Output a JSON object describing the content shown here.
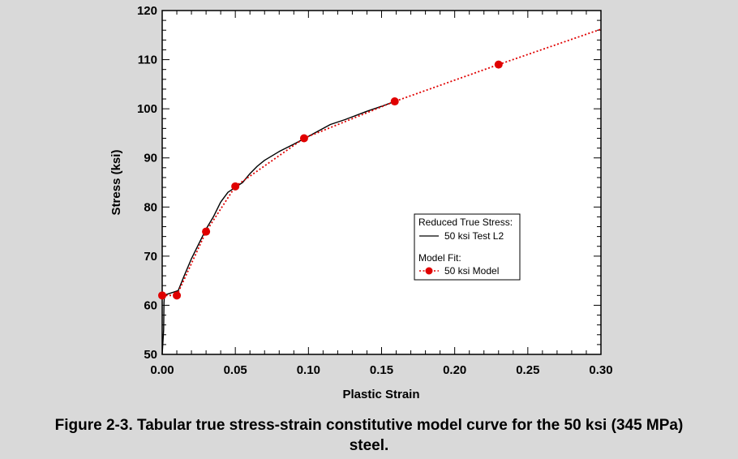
{
  "chart_data": {
    "type": "line",
    "xlabel": "Plastic Strain",
    "ylabel": "Stress (ksi)",
    "xlim": [
      0,
      0.3
    ],
    "ylim": [
      50,
      120
    ],
    "x_ticks": [
      0.0,
      0.05,
      0.1,
      0.15,
      0.2,
      0.25,
      0.3
    ],
    "x_tick_labels": [
      "0.00",
      "0.05",
      "0.10",
      "0.15",
      "0.20",
      "0.25",
      "0.30"
    ],
    "y_ticks": [
      50,
      60,
      70,
      80,
      90,
      100,
      110,
      120
    ],
    "y_tick_labels": [
      "50",
      "60",
      "70",
      "80",
      "90",
      "100",
      "110",
      "120"
    ],
    "grid": false,
    "legend_position": "center-right",
    "legend": {
      "group1_title": "Reduced True Stress:",
      "group2_title": "Model Fit:"
    },
    "series": [
      {
        "name": "50 ksi Test L2",
        "style": "solid",
        "color": "#000000",
        "x": [
          0.0,
          0.001,
          0.0012,
          0.0015,
          0.003,
          0.006,
          0.009,
          0.011,
          0.015,
          0.02,
          0.025,
          0.03,
          0.035,
          0.04,
          0.045,
          0.05,
          0.055,
          0.06,
          0.065,
          0.07,
          0.08,
          0.09,
          0.097,
          0.105,
          0.115,
          0.125,
          0.14,
          0.15,
          0.159
        ],
        "y": [
          50.0,
          55.0,
          60.5,
          61.8,
          62.2,
          62.5,
          62.8,
          63.0,
          66.0,
          69.5,
          72.5,
          75.5,
          78.0,
          81.0,
          83.0,
          84.0,
          85.0,
          86.8,
          88.3,
          89.5,
          91.3,
          92.8,
          93.9,
          95.2,
          96.8,
          97.8,
          99.5,
          100.5,
          101.5
        ]
      },
      {
        "name": "50 ksi Model",
        "style": "dotted",
        "color": "#e00000",
        "x": [
          0.0,
          0.01,
          0.03,
          0.05,
          0.097,
          0.159,
          0.23,
          0.3
        ],
        "y": [
          62.0,
          62.0,
          75.0,
          84.2,
          94.0,
          101.5,
          109.0,
          116.2
        ],
        "markers": [
          true,
          true,
          true,
          true,
          true,
          true,
          true,
          false
        ]
      }
    ]
  },
  "caption": {
    "line1": "Figure 2-3.  Tabular true stress-strain constitutive model curve for the 50 ksi (345 MPa)",
    "line2": "steel."
  }
}
